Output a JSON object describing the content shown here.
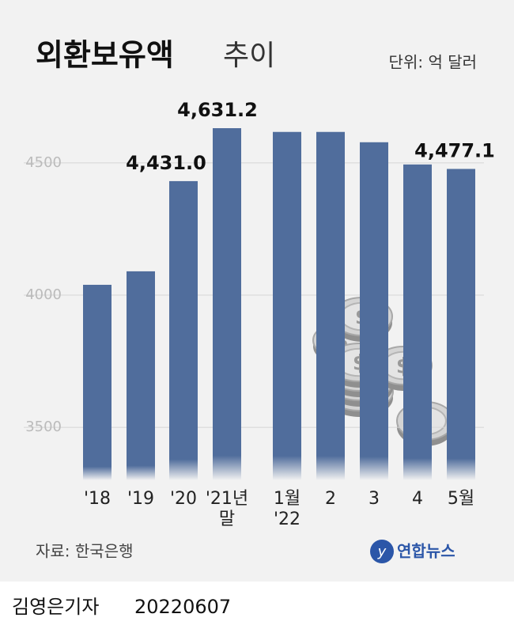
{
  "chart_data": {
    "type": "bar",
    "title": "외환보유액",
    "subtitle": "추이",
    "unit": "단위: 억 달러",
    "categories": [
      "'18",
      "'19",
      "'20",
      "'21년 말",
      "1월 '22",
      "2",
      "3",
      "4",
      "5월"
    ],
    "values": [
      4039,
      4090,
      4431.0,
      4631.2,
      4617,
      4617,
      4578,
      4494,
      4477.1
    ],
    "value_labels": [
      null,
      null,
      "4,431.0",
      "4,631.2",
      null,
      null,
      null,
      null,
      "4,477.1"
    ],
    "color": "#506d9c",
    "ylim": [
      3300,
      4700
    ],
    "yticks": [
      3500,
      4000,
      4500
    ],
    "grid": true,
    "source": "자료: 한국은행",
    "logo": "연합뉴스",
    "credit": "김영은기자",
    "date": "20220607"
  }
}
